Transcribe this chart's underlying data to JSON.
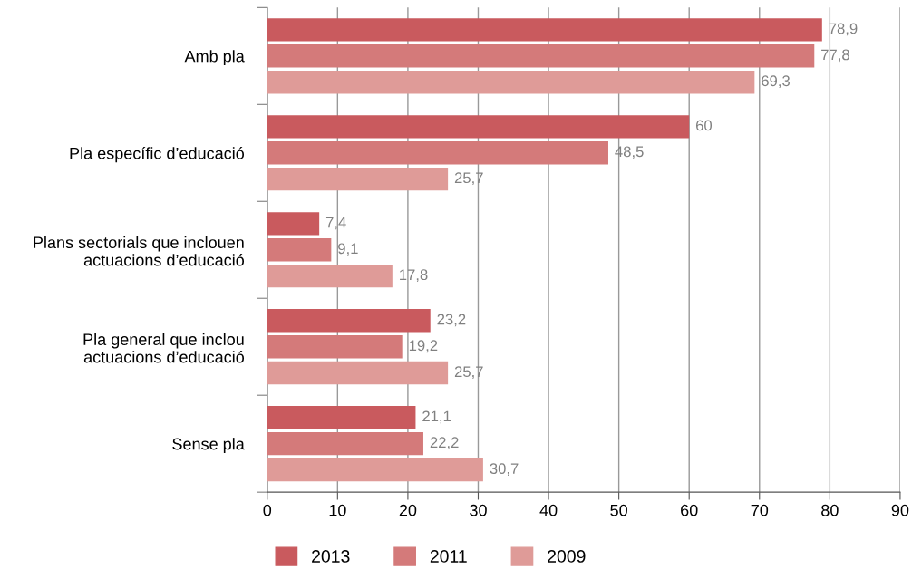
{
  "chart_data": {
    "type": "bar",
    "orientation": "horizontal",
    "categories": [
      "Amb pla",
      "Pla específic d’educació",
      "Plans sectorials que inclouen\nactuacions d’educació",
      "Pla general que inclou\nactuacions d’educació",
      "Sense pla"
    ],
    "series": [
      {
        "name": "2013",
        "color": "#c95a5e",
        "values": [
          78.9,
          60,
          7.4,
          23.2,
          21.1
        ],
        "value_labels": [
          "78,9",
          "60",
          "7,4",
          "23,2",
          "21,1"
        ]
      },
      {
        "name": "2011",
        "color": "#d47a7a",
        "values": [
          77.8,
          48.5,
          9.1,
          19.2,
          22.2
        ],
        "value_labels": [
          "77,8",
          "48,5",
          "9,1",
          "19,2",
          "22,2"
        ]
      },
      {
        "name": "2009",
        "color": "#df9b98",
        "values": [
          69.3,
          25.7,
          17.8,
          25.7,
          30.7
        ],
        "value_labels": [
          "69,3",
          "25,7",
          "17,8",
          "25,7",
          "30,7"
        ]
      }
    ],
    "xlim": [
      0,
      90
    ],
    "xticks": [
      0,
      10,
      20,
      30,
      40,
      50,
      60,
      70,
      80,
      90
    ],
    "grid": "x",
    "legend": "bottom"
  }
}
